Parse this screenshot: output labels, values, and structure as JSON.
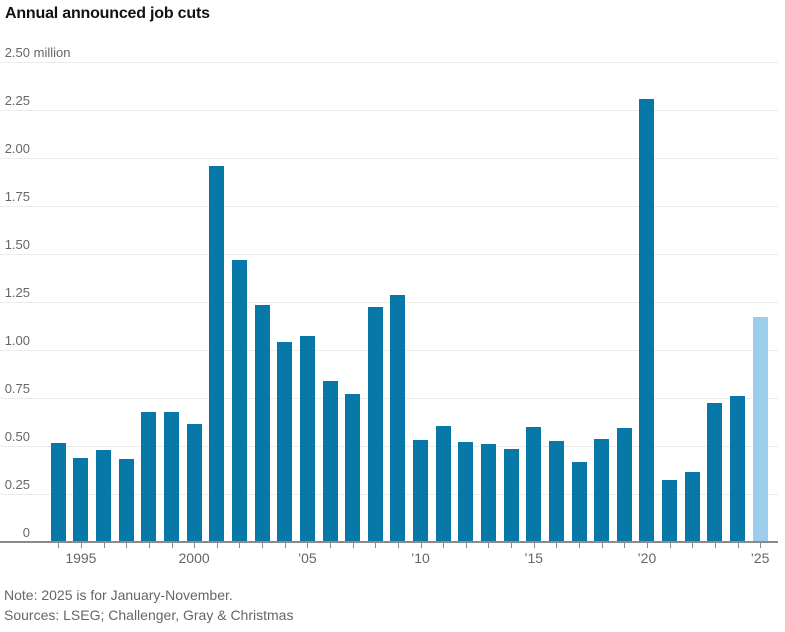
{
  "title": "Annual announced job cuts",
  "footer": {
    "note": "Note: 2025 is for January-November.",
    "sources": "Sources: LSEG; Challenger, Gray & Christmas"
  },
  "colors": {
    "bar": "#0778a8",
    "bar_final_partial_year": "#9dcdec",
    "grid": "#ebebeb",
    "axis": "#8a8a8a",
    "label_text": "#666666",
    "footer_text": "#666666",
    "title_text": "#121212"
  },
  "chart_data": {
    "type": "bar",
    "title": "Annual announced job cuts",
    "xlabel": "",
    "ylabel": "million",
    "ylim": [
      0,
      2.5
    ],
    "ytick_step": 0.25,
    "ytick_labels": [
      "0",
      "0.25",
      "0.50",
      "0.75",
      "1.00",
      "1.25",
      "1.50",
      "1.75",
      "2.00",
      "2.25",
      "2.50"
    ],
    "ytick_top_suffix": " million",
    "grid": true,
    "legend": "none",
    "categories": [
      1994,
      1995,
      1996,
      1997,
      1998,
      1999,
      2000,
      2001,
      2002,
      2003,
      2004,
      2005,
      2006,
      2007,
      2008,
      2009,
      2010,
      2011,
      2012,
      2013,
      2014,
      2015,
      2016,
      2017,
      2018,
      2019,
      2020,
      2021,
      2022,
      2023,
      2024,
      2025
    ],
    "values": [
      0.516,
      0.44,
      0.477,
      0.434,
      0.678,
      0.675,
      0.614,
      1.957,
      1.467,
      1.236,
      1.04,
      1.072,
      0.84,
      0.769,
      1.224,
      1.288,
      0.53,
      0.606,
      0.523,
      0.509,
      0.483,
      0.599,
      0.527,
      0.419,
      0.539,
      0.593,
      2.305,
      0.322,
      0.364,
      0.722,
      0.761,
      1.173
    ],
    "highlight_last_bar": true,
    "xtick_labels": [
      {
        "year": 1995,
        "label": "1995"
      },
      {
        "year": 2000,
        "label": "2000"
      },
      {
        "year": 2005,
        "label": "’05"
      },
      {
        "year": 2010,
        "label": "’10"
      },
      {
        "year": 2015,
        "label": "’15"
      },
      {
        "year": 2020,
        "label": "’20"
      },
      {
        "year": 2025,
        "label": "’25"
      }
    ]
  }
}
